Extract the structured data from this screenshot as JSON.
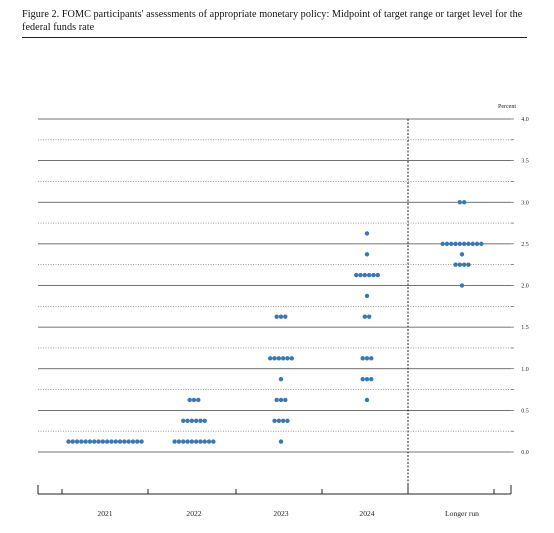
{
  "figure": {
    "title": "Figure 2.  FOMC participants' assessments of appropriate monetary policy:  Midpoint of target range or target level for the federal funds rate"
  },
  "chart_data": {
    "type": "scatter",
    "ylabel": "Percent",
    "ylim": [
      -0.375,
      4.0
    ],
    "yticks": [
      "0.0",
      "0.5",
      "1.0",
      "1.5",
      "2.0",
      "2.5",
      "3.0",
      "3.5",
      "4.0"
    ],
    "ytick_values": [
      0,
      0.5,
      1.0,
      1.5,
      2.0,
      2.5,
      3.0,
      3.5,
      4.0
    ],
    "categories": [
      "2021",
      "2022",
      "2023",
      "2024",
      "Longer run"
    ],
    "projections": [
      {
        "category": "2021",
        "dots": [
          {
            "rate": 0.125,
            "count": 18
          }
        ]
      },
      {
        "category": "2022",
        "dots": [
          {
            "rate": 0.125,
            "count": 10
          },
          {
            "rate": 0.375,
            "count": 6
          },
          {
            "rate": 0.625,
            "count": 3
          }
        ]
      },
      {
        "category": "2023",
        "dots": [
          {
            "rate": 0.125,
            "count": 1
          },
          {
            "rate": 0.375,
            "count": 4
          },
          {
            "rate": 0.625,
            "count": 3
          },
          {
            "rate": 0.875,
            "count": 1
          },
          {
            "rate": 1.125,
            "count": 6
          },
          {
            "rate": 1.625,
            "count": 3
          }
        ]
      },
      {
        "category": "2024",
        "dots": [
          {
            "rate": 0.625,
            "count": 1
          },
          {
            "rate": 0.875,
            "count": 3
          },
          {
            "rate": 1.125,
            "count": 3
          },
          {
            "rate": 1.625,
            "count": 2
          },
          {
            "rate": 1.875,
            "count": 1
          },
          {
            "rate": 2.125,
            "count": 6
          },
          {
            "rate": 2.375,
            "count": 1
          },
          {
            "rate": 2.625,
            "count": 1
          }
        ]
      },
      {
        "category": "Longer run",
        "dots": [
          {
            "rate": 2.0,
            "count": 1
          },
          {
            "rate": 2.25,
            "count": 4
          },
          {
            "rate": 2.375,
            "count": 1
          },
          {
            "rate": 2.5,
            "count": 10
          },
          {
            "rate": 3.0,
            "count": 2
          }
        ]
      }
    ],
    "grid": true,
    "colors": {
      "dot": "#3a78b5",
      "line": "#333333",
      "gridline": "#555555"
    }
  }
}
